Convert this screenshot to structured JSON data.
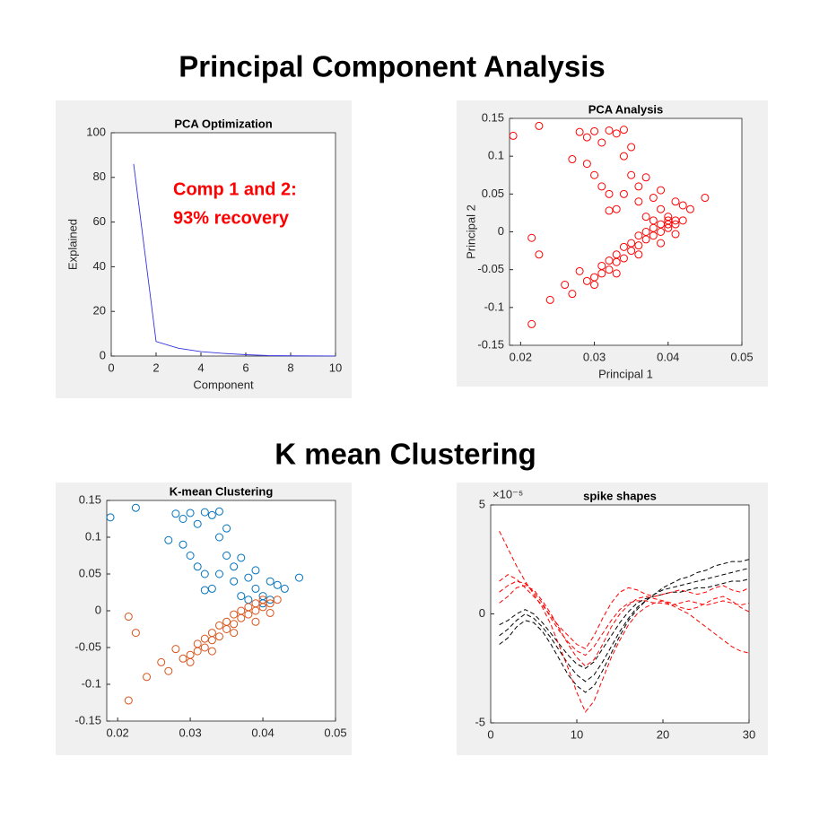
{
  "headings": [
    "Principal Component Analysis",
    "K mean Clustering"
  ],
  "chart_data": [
    {
      "type": "line",
      "title": "PCA Optimization",
      "x_label": "Component",
      "y_label": "Explained",
      "x": [
        1,
        2,
        3,
        4,
        5,
        6,
        7,
        8,
        9,
        10
      ],
      "values": [
        86,
        6.5,
        3.5,
        2,
        1.2,
        0.6,
        0.2,
        0.1,
        0.05,
        0.02
      ],
      "color": "#3333dd",
      "xlim": [
        0,
        10
      ],
      "xticks": [
        0,
        2,
        4,
        6,
        8,
        10
      ],
      "ylim": [
        0,
        100
      ],
      "yticks": [
        0,
        20,
        40,
        60,
        80,
        100
      ],
      "annotation": [
        "Comp 1 and 2:",
        "93% recovery"
      ]
    },
    {
      "type": "scatter",
      "title": "PCA Analysis",
      "x_label": "Principal 1",
      "y_label": "Principal 2",
      "color": "#ff0000",
      "x": [
        0.019,
        0.0225,
        0.027,
        0.028,
        0.029,
        0.03,
        0.031,
        0.032,
        0.033,
        0.034,
        0.035,
        0.034,
        0.03,
        0.031,
        0.032,
        0.033,
        0.032,
        0.035,
        0.036,
        0.037,
        0.038,
        0.039,
        0.04,
        0.041,
        0.042,
        0.043,
        0.045,
        0.037,
        0.038,
        0.04,
        0.036,
        0.039,
        0.041,
        0.034,
        0.029,
        0.0215,
        0.0225,
        0.024,
        0.0215,
        0.027,
        0.028,
        0.029,
        0.03,
        0.031,
        0.031,
        0.032,
        0.032,
        0.033,
        0.033,
        0.034,
        0.034,
        0.035,
        0.035,
        0.036,
        0.036,
        0.037,
        0.037,
        0.038,
        0.038,
        0.039,
        0.039,
        0.04,
        0.04,
        0.041,
        0.042,
        0.03,
        0.033,
        0.036,
        0.039,
        0.041,
        0.026
      ],
      "y": [
        0.127,
        0.14,
        0.096,
        0.132,
        0.125,
        0.133,
        0.118,
        0.134,
        0.13,
        0.135,
        0.112,
        0.1,
        0.075,
        0.06,
        0.05,
        0.03,
        0.028,
        0.075,
        0.06,
        0.072,
        0.045,
        0.03,
        0.02,
        0.04,
        0.035,
        0.03,
        0.045,
        0.02,
        0.015,
        0.01,
        0.04,
        0.055,
        0.015,
        0.05,
        0.09,
        -0.008,
        -0.03,
        -0.09,
        -0.122,
        -0.082,
        -0.052,
        -0.065,
        -0.06,
        -0.055,
        -0.045,
        -0.05,
        -0.038,
        -0.04,
        -0.03,
        -0.035,
        -0.02,
        -0.025,
        -0.015,
        -0.018,
        -0.005,
        -0.01,
        0.0,
        -0.005,
        0.005,
        0.0,
        0.01,
        0.005,
        0.015,
        0.01,
        0.015,
        -0.07,
        -0.055,
        -0.03,
        -0.015,
        -0.003,
        -0.07
      ],
      "xlim": [
        0.0185,
        0.05
      ],
      "xticks": [
        0.02,
        0.03,
        0.04,
        0.05
      ],
      "ylim": [
        -0.15,
        0.15
      ],
      "yticks": [
        -0.15,
        -0.1,
        -0.05,
        0,
        0.05,
        0.1,
        0.15
      ]
    },
    {
      "type": "scatter",
      "title": "K-mean Clustering",
      "series": [
        {
          "color": "#0072bd",
          "x": [
            0.019,
            0.0225,
            0.027,
            0.028,
            0.029,
            0.03,
            0.031,
            0.032,
            0.033,
            0.034,
            0.035,
            0.034,
            0.03,
            0.031,
            0.032,
            0.033,
            0.032,
            0.035,
            0.036,
            0.037,
            0.038,
            0.039,
            0.04,
            0.041,
            0.042,
            0.043,
            0.045,
            0.037,
            0.038,
            0.04,
            0.036,
            0.039,
            0.041,
            0.034,
            0.029
          ],
          "y": [
            0.127,
            0.14,
            0.096,
            0.132,
            0.125,
            0.133,
            0.118,
            0.134,
            0.13,
            0.135,
            0.112,
            0.1,
            0.075,
            0.06,
            0.05,
            0.03,
            0.028,
            0.075,
            0.06,
            0.072,
            0.045,
            0.03,
            0.02,
            0.04,
            0.035,
            0.03,
            0.045,
            0.02,
            0.015,
            0.01,
            0.04,
            0.055,
            0.015,
            0.05,
            0.09
          ]
        },
        {
          "color": "#d95319",
          "x": [
            0.0215,
            0.0225,
            0.024,
            0.0215,
            0.027,
            0.028,
            0.029,
            0.03,
            0.031,
            0.031,
            0.032,
            0.032,
            0.033,
            0.033,
            0.034,
            0.034,
            0.035,
            0.035,
            0.036,
            0.036,
            0.037,
            0.037,
            0.038,
            0.038,
            0.039,
            0.039,
            0.04,
            0.04,
            0.041,
            0.042,
            0.03,
            0.033,
            0.036,
            0.039,
            0.041,
            0.026
          ],
          "y": [
            -0.008,
            -0.03,
            -0.09,
            -0.122,
            -0.082,
            -0.052,
            -0.065,
            -0.06,
            -0.055,
            -0.045,
            -0.05,
            -0.038,
            -0.04,
            -0.03,
            -0.035,
            -0.02,
            -0.025,
            -0.015,
            -0.018,
            -0.005,
            -0.01,
            0.0,
            -0.005,
            0.005,
            0.0,
            0.01,
            0.005,
            0.015,
            0.01,
            0.015,
            -0.07,
            -0.055,
            -0.03,
            -0.015,
            -0.003,
            -0.07
          ]
        }
      ],
      "xlim": [
        0.0185,
        0.05
      ],
      "xticks": [
        0.02,
        0.03,
        0.04,
        0.05
      ],
      "ylim": [
        -0.15,
        0.15
      ],
      "yticks": [
        -0.15,
        -0.1,
        -0.05,
        0,
        0.05,
        0.1,
        0.15
      ]
    },
    {
      "type": "line",
      "title": "spike shapes",
      "y_exponent_label": "×10⁻⁵",
      "line_style": "dashed",
      "x": [
        1,
        2,
        3,
        4,
        5,
        6,
        7,
        8,
        9,
        10,
        11,
        12,
        13,
        14,
        15,
        16,
        17,
        18,
        19,
        20,
        21,
        22,
        23,
        24,
        25,
        26,
        27,
        28,
        29,
        30
      ],
      "series": [
        {
          "color": "#000000",
          "values": [
            -1e-05,
            -7e-06,
            -3e-06,
            0,
            -2e-06,
            -6e-06,
            -1.1e-05,
            -1.7e-05,
            -2.3e-05,
            -2.8e-05,
            -3.1e-05,
            -2.8e-05,
            -2.2e-05,
            -1.5e-05,
            -8e-06,
            -2e-06,
            3e-06,
            6e-06,
            9e-06,
            1.1e-05,
            1.2e-05,
            1.3e-05,
            1.4e-05,
            1.5e-05,
            1.6e-05,
            1.7e-05,
            1.8e-05,
            1.9e-05,
            2e-05,
            2.1e-05
          ]
        },
        {
          "color": "#000000",
          "values": [
            -5e-06,
            -3e-06,
            0,
            2e-06,
            0,
            -4e-06,
            -9e-06,
            -1.4e-05,
            -1.9e-05,
            -2.3e-05,
            -2.5e-05,
            -2.2e-05,
            -1.6e-05,
            -1e-05,
            -4e-06,
            1e-06,
            5e-06,
            7e-06,
            8e-06,
            9e-06,
            1e-05,
            1e-05,
            1.1e-05,
            1.2e-05,
            1.2e-05,
            1.3e-05,
            1.4e-05,
            1.5e-05,
            1.5e-05,
            1.6e-05
          ]
        },
        {
          "color": "#000000",
          "values": [
            -1.4e-05,
            -1.1e-05,
            -6e-06,
            -3e-06,
            -4e-06,
            -8e-06,
            -1.4e-05,
            -2.1e-05,
            -2.8e-05,
            -3.3e-05,
            -3.6e-05,
            -3.3e-05,
            -2.6e-05,
            -1.8e-05,
            -1e-05,
            -3e-06,
            2e-06,
            6e-06,
            9e-06,
            1.2e-05,
            1.4e-05,
            1.6e-05,
            1.7e-05,
            1.9e-05,
            2e-05,
            2.2e-05,
            2.3e-05,
            2.4e-05,
            2.4e-05,
            2.5e-05
          ]
        },
        {
          "color": "#ff0000",
          "values": [
            1e-05,
            1.3e-05,
            1.5e-05,
            1.4e-05,
            1e-05,
            5e-06,
            -2e-06,
            -8e-06,
            -1.3e-05,
            -1.7e-05,
            -1.9e-05,
            -1.5e-05,
            -9e-06,
            -3e-06,
            2e-06,
            5e-06,
            6e-06,
            6e-06,
            5e-06,
            5e-06,
            4e-06,
            5e-06,
            6e-06,
            5e-06,
            4e-06,
            5e-06,
            6e-06,
            5e-06,
            4e-06,
            5e-06
          ]
        },
        {
          "color": "#ff0000",
          "values": [
            5e-06,
            8e-06,
            1.2e-05,
            1.3e-05,
            1.1e-05,
            6e-06,
            0,
            -7e-06,
            -1.4e-05,
            -2e-05,
            -2.4e-05,
            -2.1e-05,
            -1.4e-05,
            -6e-06,
            0,
            4e-06,
            7e-06,
            8e-06,
            7e-06,
            6e-06,
            5e-06,
            3e-06,
            2e-06,
            3e-06,
            5e-06,
            7e-06,
            8e-06,
            6e-06,
            3e-06,
            1e-06
          ]
        },
        {
          "color": "#ff0000",
          "values": [
            3.8e-05,
            3e-05,
            2.2e-05,
            1.5e-05,
            9e-06,
            3e-06,
            -5e-06,
            -1.5e-05,
            -2.5e-05,
            -3.6e-05,
            -4.5e-05,
            -4e-05,
            -3e-05,
            -2e-05,
            -1.2e-05,
            -5e-06,
            0,
            3e-06,
            5e-06,
            6e-06,
            4e-06,
            2e-06,
            0,
            -3e-06,
            -6e-06,
            -9e-06,
            -1.2e-05,
            -1.5e-05,
            -1.7e-05,
            -1.8e-05
          ]
        },
        {
          "color": "#ff0000",
          "values": [
            1.5e-05,
            1.8e-05,
            1.6e-05,
            1.2e-05,
            8e-06,
            4e-06,
            -1e-06,
            -6e-06,
            -1e-05,
            -1.4e-05,
            -1.6e-05,
            -1e-05,
            -2e-06,
            5e-06,
            1e-05,
            1.2e-05,
            1.1e-05,
            9e-06,
            8e-06,
            9e-06,
            1e-05,
            1.1e-05,
            1e-05,
            9e-06,
            1e-05,
            1.2e-05,
            1.3e-05,
            1.1e-05,
            1e-05,
            1.2e-05
          ]
        }
      ],
      "xlim": [
        0,
        30
      ],
      "xticks": [
        0,
        10,
        20,
        30
      ],
      "ylim": [
        -5e-05,
        5e-05
      ],
      "yticks": [
        {
          "value": -5e-05,
          "label": "-5"
        },
        {
          "value": 0,
          "label": "0"
        },
        {
          "value": 5e-05,
          "label": "5"
        }
      ]
    }
  ]
}
